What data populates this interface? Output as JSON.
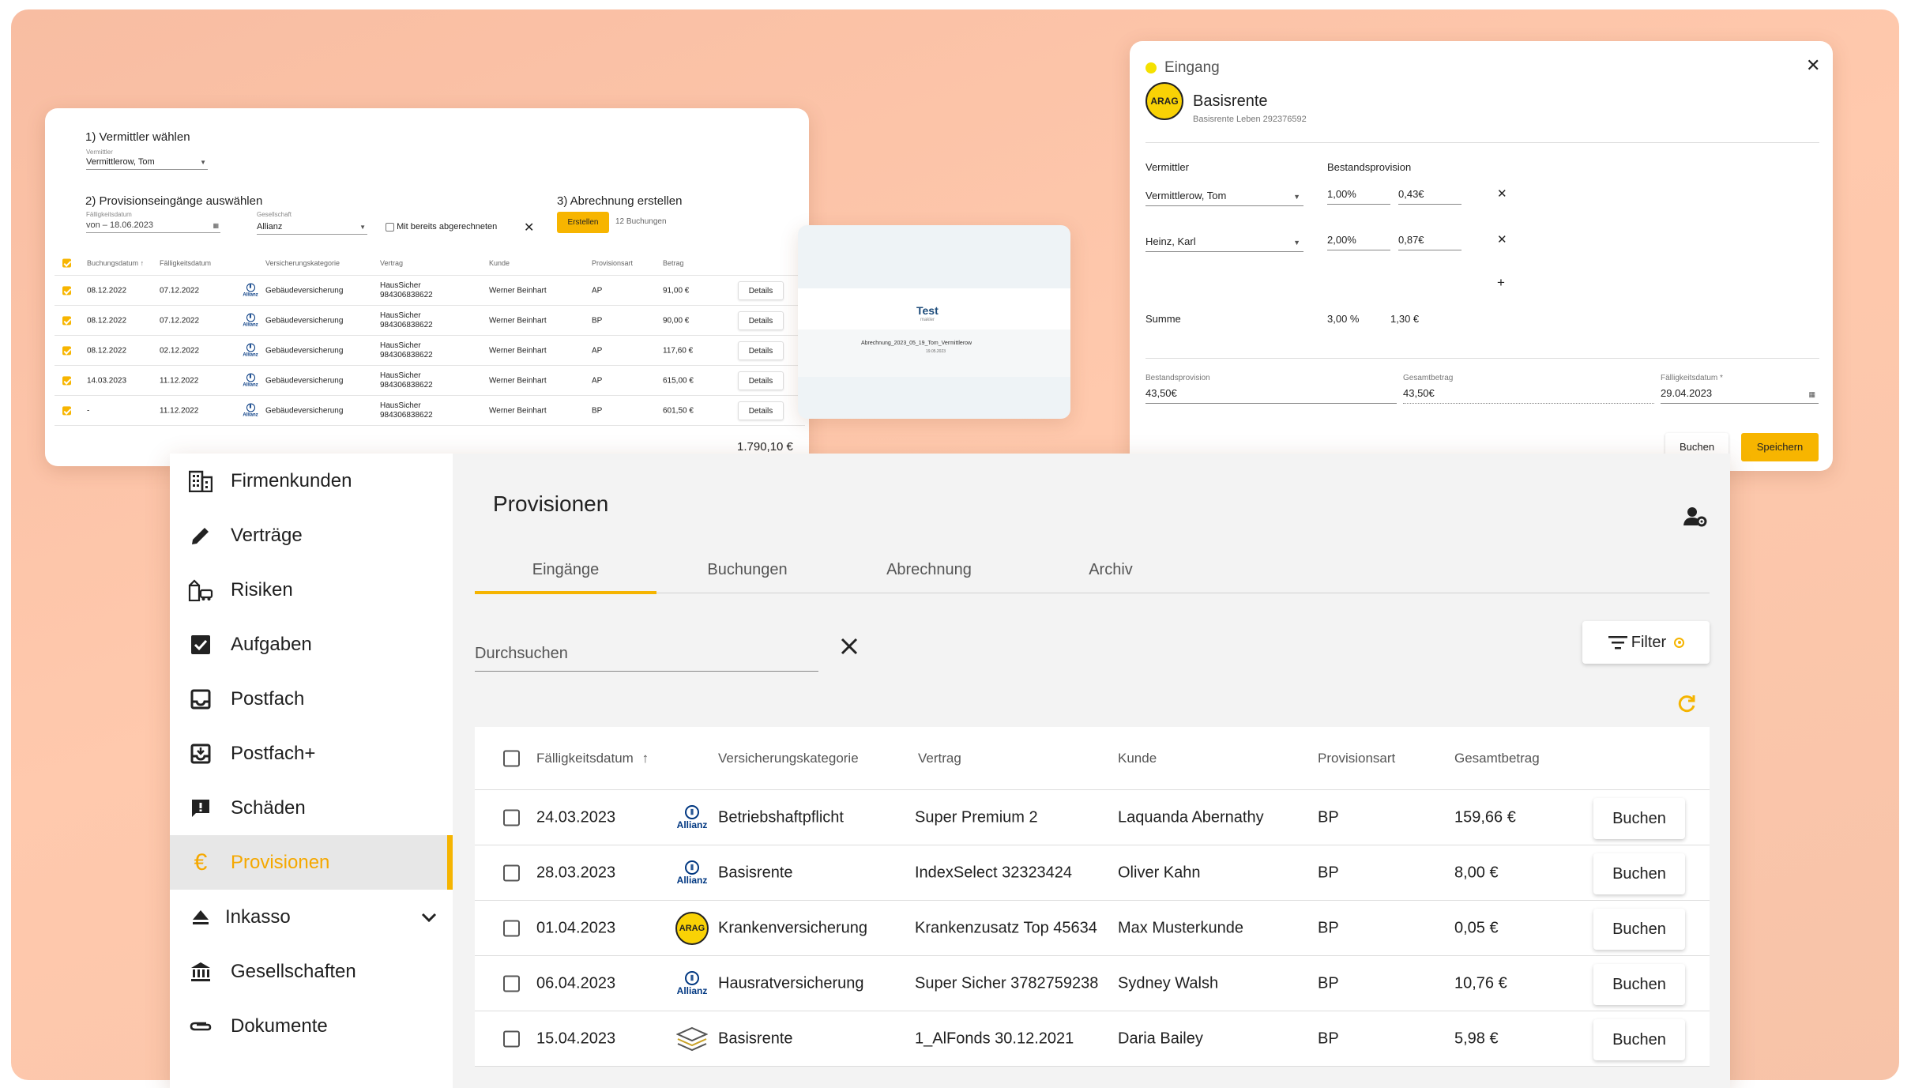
{
  "colors": {
    "accent": "#f5b400",
    "background": "#ffc9ad",
    "allianz": "#003781",
    "arag": "#f9d205"
  },
  "abrechnung": {
    "step1_title": "1) Vermittler wählen",
    "vermittler_label": "Vermittler",
    "vermittler_value": "Vermittlerow, Tom",
    "step2_title": "2) Provisionseingänge auswählen",
    "faelligkeit_label": "Fälligkeitsdatum",
    "faelligkeit_value": "von – 18.06.2023",
    "gesellschaft_label": "Gesellschaft",
    "gesellschaft_value": "Allianz",
    "checkbox_label": "Mit bereits abgerechneten",
    "step3_title": "3) Abrechnung erstellen",
    "erstellen_label": "Erstellen",
    "buchungen_count": "12 Buchungen",
    "columns": [
      "Buchungsdatum",
      "Fälligkeitsdatum",
      "Versicherungskategorie",
      "Vertrag",
      "Kunde",
      "Provisionsart",
      "Betrag"
    ],
    "rows": [
      {
        "buchung": "08.12.2022",
        "faellig": "07.12.2022",
        "kategorie": "Gebäudeversicherung",
        "vertrag1": "HausSicher",
        "vertrag2": "984306838622",
        "kunde": "Werner Beinhart",
        "art": "AP",
        "betrag": "91,00 €",
        "details": "Details"
      },
      {
        "buchung": "08.12.2022",
        "faellig": "07.12.2022",
        "kategorie": "Gebäudeversicherung",
        "vertrag1": "HausSicher",
        "vertrag2": "984306838622",
        "kunde": "Werner Beinhart",
        "art": "BP",
        "betrag": "90,00 €",
        "details": "Details"
      },
      {
        "buchung": "08.12.2022",
        "faellig": "02.12.2022",
        "kategorie": "Gebäudeversicherung",
        "vertrag1": "HausSicher",
        "vertrag2": "984306838622",
        "kunde": "Werner Beinhart",
        "art": "AP",
        "betrag": "117,60 €",
        "details": "Details"
      },
      {
        "buchung": "14.03.2023",
        "faellig": "11.12.2022",
        "kategorie": "Gebäudeversicherung",
        "vertrag1": "HausSicher",
        "vertrag2": "984306838622",
        "kunde": "Werner Beinhart",
        "art": "AP",
        "betrag": "615,00 €",
        "details": "Details"
      },
      {
        "buchung": "-",
        "faellig": "11.12.2022",
        "kategorie": "Gebäudeversicherung",
        "vertrag1": "HausSicher",
        "vertrag2": "984306838622",
        "kunde": "Werner Beinhart",
        "art": "BP",
        "betrag": "601,50 €",
        "details": "Details"
      }
    ],
    "total": "1.790,10 €",
    "allianz_text": "Allianz"
  },
  "preview": {
    "title": "Test",
    "subtitle": "makler",
    "filename": "Abrechnung_2023_05_19_Tom_Vermittlerow",
    "date": "19.05.2023"
  },
  "eingang": {
    "status": "Eingang",
    "logo_text": "ARAG",
    "title": "Basisrente",
    "subtitle": "Basisrente Leben 292376592",
    "vermittler_header": "Vermittler",
    "provision_header": "Bestandsprovision",
    "entries": [
      {
        "name": "Vermittlerow, Tom",
        "percent": "1,00%",
        "amount": "0,43€"
      },
      {
        "name": "Heinz, Karl",
        "percent": "2,00%",
        "amount": "0,87€"
      }
    ],
    "add_symbol": "+",
    "summe_label": "Summe",
    "summe_percent": "3,00 %",
    "summe_amount": "1,30 €",
    "bestand_label": "Bestandsprovision",
    "bestand_value": "43,50€",
    "gesamt_label": "Gesamtbetrag",
    "gesamt_value": "43,50€",
    "faellig_label": "Fälligkeitsdatum *",
    "faellig_value": "29.04.2023",
    "buchen_label": "Buchen",
    "speichern_label": "Speichern"
  },
  "sidebar": {
    "items": [
      {
        "label": "Firmenkunden",
        "icon": "building-icon"
      },
      {
        "label": "Verträge",
        "icon": "pencil-icon"
      },
      {
        "label": "Risiken",
        "icon": "risk-icon"
      },
      {
        "label": "Aufgaben",
        "icon": "checkbox-icon"
      },
      {
        "label": "Postfach",
        "icon": "inbox-icon"
      },
      {
        "label": "Postfach+",
        "icon": "inbox-plus-icon"
      },
      {
        "label": "Schäden",
        "icon": "alert-message-icon"
      },
      {
        "label": "Provisionen",
        "icon": "euro-icon",
        "active": true
      },
      {
        "label": "Inkasso",
        "icon": "eject-icon",
        "expandable": true
      },
      {
        "label": "Gesellschaften",
        "icon": "bank-icon"
      },
      {
        "label": "Dokumente",
        "icon": "paperclip-icon"
      }
    ]
  },
  "main": {
    "title": "Provisionen",
    "tabs": [
      "Eingänge",
      "Buchungen",
      "Abrechnung",
      "Archiv"
    ],
    "active_tab": "Eingänge",
    "search_placeholder": "Durchsuchen",
    "filter_label": "Filter",
    "columns": [
      "Fälligkeitsdatum",
      "Versicherungskategorie",
      "Vertrag",
      "Kunde",
      "Provisionsart",
      "Gesamtbetrag"
    ],
    "rows": [
      {
        "datum": "24.03.2023",
        "logo": "Allianz",
        "kategorie": "Betriebshaftpflicht",
        "vertrag": "Super Premium 2",
        "kunde": "Laquanda Abernathy",
        "art": "BP",
        "betrag": "159,66 €",
        "action": "Buchen"
      },
      {
        "datum": "28.03.2023",
        "logo": "Allianz",
        "kategorie": "Basisrente",
        "vertrag": "IndexSelect 32323424",
        "kunde": "Oliver Kahn",
        "art": "BP",
        "betrag": "8,00 €",
        "action": "Buchen"
      },
      {
        "datum": "01.04.2023",
        "logo": "ARAG",
        "kategorie": "Krankenversicherung",
        "vertrag": "Krankenzusatz Top 45634",
        "kunde": "Max Musterkunde",
        "art": "BP",
        "betrag": "0,05 €",
        "action": "Buchen"
      },
      {
        "datum": "06.04.2023",
        "logo": "Allianz",
        "kategorie": "Hausratversicherung",
        "vertrag": "Super Sicher 3782759238",
        "kunde": "Sydney Walsh",
        "art": "BP",
        "betrag": "10,76 €",
        "action": "Buchen"
      },
      {
        "datum": "15.04.2023",
        "logo": "AlFonds",
        "kategorie": "Basisrente",
        "vertrag": "1_AlFonds 30.12.2021",
        "kunde": "Daria Bailey",
        "art": "BP",
        "betrag": "5,98 €",
        "action": "Buchen"
      }
    ]
  }
}
